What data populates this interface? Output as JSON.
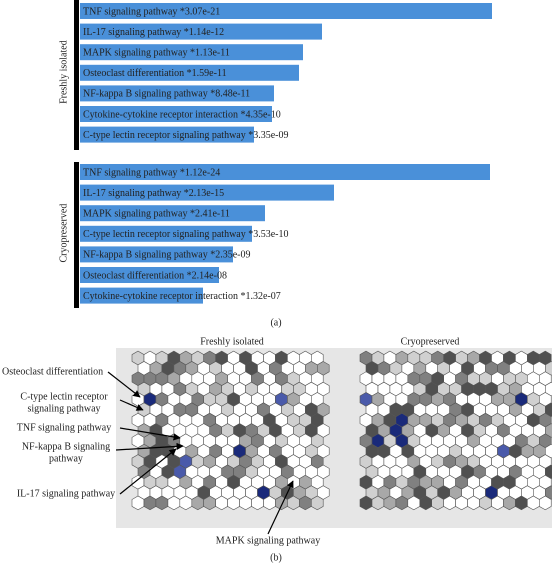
{
  "chart_data": [
    {
      "type": "bar",
      "orientation": "horizontal",
      "title": "Freshly isolated",
      "color": "#4a90d9",
      "categories": [
        "TNF signaling pathway *3.07e-21",
        "IL-17 signaling pathway *1.14e-12",
        "MAPK signaling pathway *1.13e-11",
        "Osteoclast differentiation *1.59e-11",
        "NF-kappa B signaling pathway *8.48e-11",
        "Cytokine-cytokine receptor interaction *4.35e-10",
        "C-type lectin receptor signaling pathway *3.35e-09"
      ],
      "values": [
        412,
        242,
        223,
        219,
        194,
        192,
        174
      ]
    },
    {
      "type": "bar",
      "orientation": "horizontal",
      "title": "Cryopreserved",
      "color": "#4a90d9",
      "categories": [
        "TNF signaling pathway *1.12e-24",
        "IL-17 signaling pathway *2.13e-15",
        "MAPK signaling pathway *2.41e-11",
        "C-type lectin receptor signaling pathway *3.53e-10",
        "NF-kappa B signaling pathway *2.35e-09",
        "Osteoclast differentiation *2.14e-08",
        "Cytokine-cytokine receptor interaction *1.32e-07"
      ],
      "values": [
        410,
        254,
        185,
        172,
        153,
        139,
        123
      ]
    }
  ],
  "panel_a_label": "(a)",
  "panel_b": {
    "label": "(b)",
    "map_titles": [
      "Freshly isolated",
      "Cryopreserved"
    ],
    "annotations": [
      {
        "lines": [
          "Osteoclast differentiation"
        ]
      },
      {
        "lines": [
          "C-type lectin receptor",
          "signaling pathway"
        ]
      },
      {
        "lines": [
          "TNF signaling pathway"
        ]
      },
      {
        "lines": [
          "NF-kappa B signaling",
          "pathway"
        ]
      },
      {
        "lines": [
          "IL-17 signaling pathway"
        ]
      },
      {
        "lines": [
          "MAPK signaling pathway"
        ]
      }
    ]
  }
}
